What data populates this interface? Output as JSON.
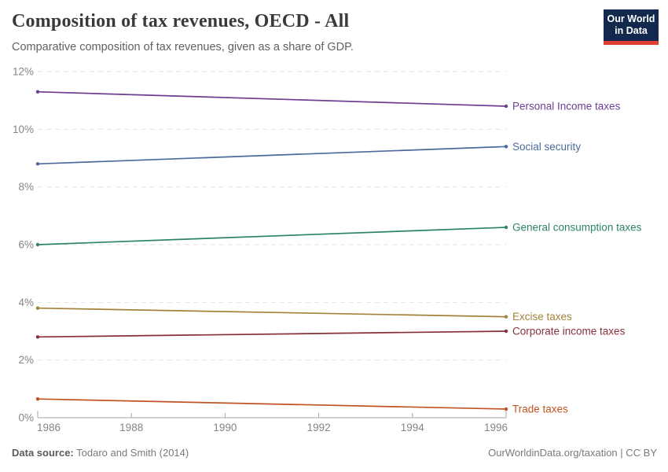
{
  "header": {
    "title": "Composition of tax revenues, OECD - All",
    "subtitle": "Comparative composition of tax revenues, given as a share of GDP."
  },
  "logo": {
    "line1": "Our World",
    "line2": "in Data",
    "bg_color": "#12294d",
    "accent_color": "#dc3e32"
  },
  "footer": {
    "source_label": "Data source:",
    "source_value": " Todaro and Smith (2014)",
    "credit": "OurWorldinData.org/taxation | CC BY"
  },
  "chart_data": {
    "type": "line",
    "title": "Composition of tax revenues, OECD - All",
    "subtitle": "Comparative composition of tax revenues, given as a share of GDP.",
    "xlabel": "",
    "ylabel": "",
    "x": [
      1986,
      1996
    ],
    "series": [
      {
        "name": "Personal Income taxes",
        "color": "#6d3e91",
        "values": [
          11.3,
          10.8
        ]
      },
      {
        "name": "Social security",
        "color": "#4c6a9c",
        "values": [
          8.8,
          9.4
        ]
      },
      {
        "name": "General consumption taxes",
        "color": "#2c8465",
        "values": [
          6.0,
          6.6
        ]
      },
      {
        "name": "Excise taxes",
        "color": "#a5823b",
        "values": [
          3.8,
          3.5
        ]
      },
      {
        "name": "Corporate income taxes",
        "color": "#883039",
        "values": [
          2.8,
          3.0
        ]
      },
      {
        "name": "Trade taxes",
        "color": "#bf5321",
        "values": [
          0.65,
          0.3
        ]
      }
    ],
    "xtick_values": [
      1986,
      1988,
      1990,
      1992,
      1994,
      1996
    ],
    "xtick_labels": [
      "1986",
      "1988",
      "1990",
      "1992",
      "1994",
      "1996"
    ],
    "ytick_values": [
      0,
      2,
      4,
      6,
      8,
      10,
      12
    ],
    "ytick_labels": [
      "0%",
      "2%",
      "4%",
      "6%",
      "8%",
      "10%",
      "12%"
    ],
    "xlim": [
      1986,
      1996
    ],
    "ylim": [
      0,
      12
    ],
    "grid": "horizontal-dashed",
    "legend": "line-end-labels"
  }
}
